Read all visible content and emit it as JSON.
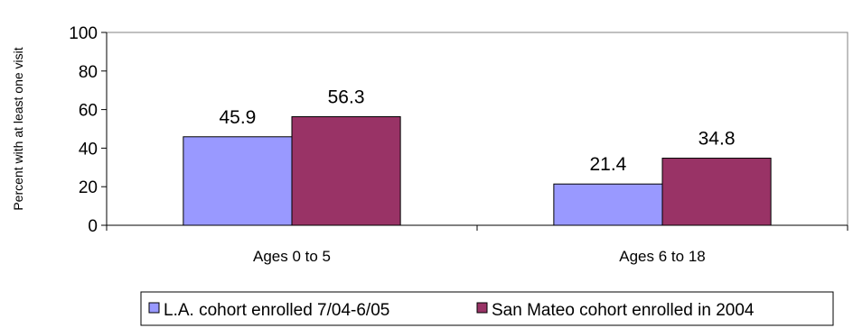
{
  "chart_data": {
    "type": "bar",
    "categories": [
      "Ages 0 to 5",
      "Ages 6 to 18"
    ],
    "series": [
      {
        "name": "L.A. cohort enrolled 7/04-6/05",
        "color": "#9999ff",
        "values": [
          45.9,
          21.4
        ],
        "labels": [
          "45.9",
          "21.4"
        ]
      },
      {
        "name": "San Mateo cohort enrolled in 2004",
        "color": "#993366",
        "values": [
          56.3,
          34.8
        ],
        "labels": [
          "56.3",
          "34.8"
        ]
      }
    ],
    "ylabel": "Percent with at least one visit",
    "xlabel": "",
    "ylim": [
      0,
      100
    ],
    "yticks": [
      "0",
      "20",
      "40",
      "60",
      "80",
      "100"
    ],
    "grid": false,
    "legend": "bottom"
  }
}
